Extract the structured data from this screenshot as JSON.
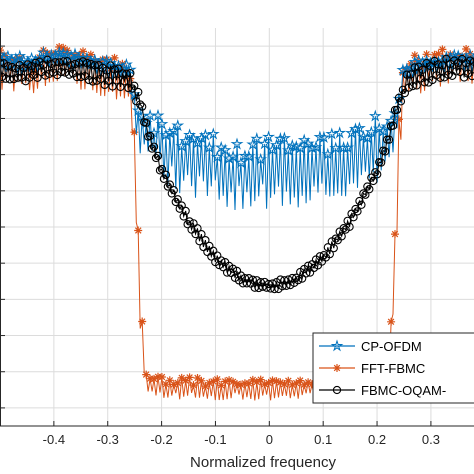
{
  "chart_data": {
    "type": "line",
    "title": "",
    "xlabel": "Normalized frequency",
    "ylabel": "",
    "xlim": [
      -0.5,
      0.38
    ],
    "ylim": [
      -105,
      5
    ],
    "xticks": [
      -0.4,
      -0.3,
      -0.2,
      -0.1,
      0,
      0.1,
      0.2,
      0.3
    ],
    "xtick_labels": [
      "-0.4",
      "-0.3",
      "-0.2",
      "-0.1",
      "0",
      "0.1",
      "0.2",
      "0.3"
    ],
    "grid": true,
    "legend_position": "bottom-right",
    "series": [
      {
        "name": "CP-OFDM",
        "color": "#0072BD",
        "marker": "star",
        "x": [
          -0.5,
          -0.45,
          -0.4,
          -0.35,
          -0.3,
          -0.26,
          -0.25,
          -0.24,
          -0.2,
          -0.15,
          -0.1,
          -0.05,
          0,
          0.05,
          0.1,
          0.15,
          0.2,
          0.23,
          0.24,
          0.25,
          0.3,
          0.35,
          0.38
        ],
        "upper": [
          -2,
          -3,
          -1,
          -2,
          -4,
          -5,
          -12,
          -17,
          -19,
          -22,
          -24,
          -25,
          -25,
          -25,
          -24,
          -22,
          -19,
          -17,
          -12,
          -5,
          -3,
          -2,
          -2
        ],
        "lower": [
          -8,
          -8,
          -6,
          -7,
          -10,
          -10,
          -22,
          -30,
          -38,
          -42,
          -44,
          -46,
          -45,
          -46,
          -44,
          -42,
          -38,
          -34,
          -22,
          -10,
          -8,
          -7,
          -8
        ]
      },
      {
        "name": "FFT-FBMC",
        "color": "#D95319",
        "marker": "asterisk",
        "x": [
          -0.5,
          -0.45,
          -0.4,
          -0.35,
          -0.3,
          -0.26,
          -0.25,
          -0.24,
          -0.23,
          -0.2,
          -0.1,
          0,
          0.1,
          0.2,
          0.22,
          0.23,
          0.24,
          0.25,
          0.3,
          0.35,
          0.38
        ],
        "upper": [
          -1,
          -2,
          0,
          -1,
          -2,
          -3,
          -20,
          -60,
          -90,
          -91,
          -92,
          -92,
          -92,
          -91,
          -90,
          -60,
          -20,
          -3,
          -1,
          0,
          -1
        ],
        "lower": [
          -12,
          -14,
          -10,
          -12,
          -15,
          -16,
          -40,
          -80,
          -97,
          -98,
          -98,
          -98,
          -98,
          -98,
          -97,
          -80,
          -40,
          -16,
          -12,
          -10,
          -12
        ]
      },
      {
        "name": "FBMC-OQAM-",
        "color": "#000000",
        "marker": "circle",
        "x": [
          -0.5,
          -0.45,
          -0.4,
          -0.35,
          -0.3,
          -0.26,
          -0.24,
          -0.22,
          -0.2,
          -0.15,
          -0.1,
          -0.05,
          0,
          0.05,
          0.1,
          0.15,
          0.2,
          0.22,
          0.24,
          0.26,
          0.3,
          0.35,
          0.38
        ],
        "upper": [
          -4,
          -5,
          -3,
          -4,
          -5,
          -6,
          -14,
          -25,
          -33,
          -47,
          -57,
          -63,
          -65,
          -63,
          -57,
          -47,
          -33,
          -25,
          -14,
          -6,
          -4,
          -3,
          -4
        ],
        "lower": [
          -10,
          -10,
          -8,
          -9,
          -11,
          -12,
          -17,
          -28,
          -36,
          -50,
          -60,
          -66,
          -68,
          -66,
          -60,
          -50,
          -36,
          -28,
          -17,
          -12,
          -10,
          -8,
          -10
        ]
      }
    ]
  }
}
